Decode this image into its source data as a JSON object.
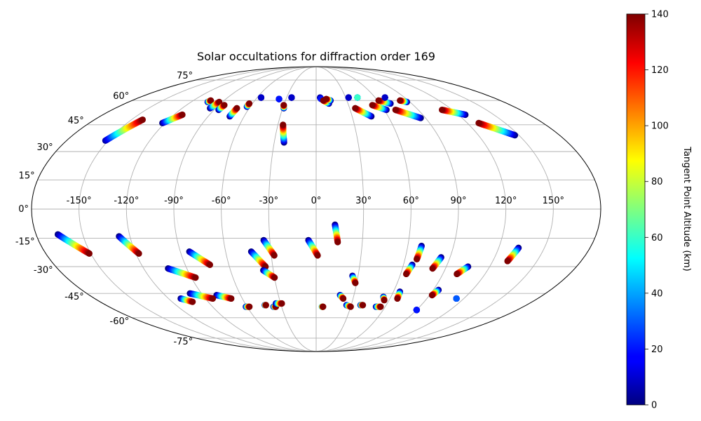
{
  "chart_data": {
    "type": "scatter",
    "projection": "mollweide",
    "title": "Solar occultations for diffraction order 169",
    "grid": true,
    "lon_ticks": [
      "-150°",
      "-120°",
      "-90°",
      "-60°",
      "-30°",
      "0°",
      "30°",
      "60°",
      "90°",
      "120°",
      "150°"
    ],
    "lat_ticks": [
      "75°",
      "60°",
      "45°",
      "30°",
      "15°",
      "0°",
      "-15°",
      "-30°",
      "-45°",
      "-60°",
      "-75°"
    ],
    "colorbar": {
      "label": "Tangent Point Altitude (km)",
      "colormap": "jet",
      "range": [
        0,
        140
      ],
      "ticks": [
        "0",
        "20",
        "40",
        "60",
        "80",
        "100",
        "120",
        "140"
      ]
    },
    "series": [
      {
        "lon_start": -152,
        "lat_start": 36,
        "lon_end": -141,
        "lat_end": 48,
        "alt_start": 5,
        "alt_end": 140
      },
      {
        "lon_start": -122,
        "lat_start": 46,
        "lon_end": -113,
        "lat_end": 51,
        "alt_start": 0,
        "alt_end": 140
      },
      {
        "lon_start": -104,
        "lat_start": 59,
        "lon_end": -103,
        "lat_end": 60,
        "alt_start": 0,
        "alt_end": 140
      },
      {
        "lon_start": -95,
        "lat_start": 55,
        "lon_end": -93,
        "lat_end": 59,
        "alt_start": 0,
        "alt_end": 140
      },
      {
        "lon_start": -86,
        "lat_start": 54,
        "lon_end": -85,
        "lat_end": 57,
        "alt_start": 0,
        "alt_end": 140
      },
      {
        "lon_start": -72,
        "lat_start": 50,
        "lon_end": -71,
        "lat_end": 55,
        "alt_start": 0,
        "alt_end": 140
      },
      {
        "lon_start": -63,
        "lat_start": 56,
        "lon_end": -63,
        "lat_end": 58,
        "alt_start": 0,
        "alt_end": 140
      },
      {
        "lon_start": -56,
        "lat_start": 62,
        "lon_end": -56,
        "lat_end": 62,
        "alt_start": 0,
        "alt_end": 10
      },
      {
        "lon_start": -37,
        "lat_start": 61,
        "lon_end": -37,
        "lat_end": 61,
        "alt_start": 0,
        "alt_end": 20
      },
      {
        "lon_start": -29,
        "lat_start": 55,
        "lon_end": -30,
        "lat_end": 57,
        "alt_start": 0,
        "alt_end": 140
      },
      {
        "lon_start": -25,
        "lat_start": 62,
        "lon_end": -25,
        "lat_end": 62,
        "alt_start": 0,
        "alt_end": 10
      },
      {
        "lon_start": -23,
        "lat_start": 35,
        "lon_end": -26,
        "lat_end": 45,
        "alt_start": 0,
        "alt_end": 140
      },
      {
        "lon_start": 4,
        "lat_start": 62,
        "lon_end": 5,
        "lat_end": 61,
        "alt_start": 0,
        "alt_end": 20
      },
      {
        "lon_start": 12,
        "lat_start": 58,
        "lon_end": 7,
        "lat_end": 60,
        "alt_start": 0,
        "alt_end": 140
      },
      {
        "lon_start": 14,
        "lat_start": 60,
        "lon_end": 10,
        "lat_end": 61,
        "alt_start": 0,
        "alt_end": 140
      },
      {
        "lon_start": 33,
        "lat_start": 62,
        "lon_end": 33,
        "lat_end": 62,
        "alt_start": 0,
        "alt_end": 10
      },
      {
        "lon_start": 42,
        "lat_start": 62,
        "lon_end": 42,
        "lat_end": 62,
        "alt_start": 0,
        "alt_end": 60
      },
      {
        "lon_start": 46,
        "lat_start": 50,
        "lon_end": 35,
        "lat_end": 55,
        "alt_start": 0,
        "alt_end": 140
      },
      {
        "lon_start": 62,
        "lat_start": 54,
        "lon_end": 52,
        "lat_end": 57,
        "alt_start": 0,
        "alt_end": 140
      },
      {
        "lon_start": 70,
        "lat_start": 58,
        "lon_end": 61,
        "lat_end": 60,
        "alt_start": 0,
        "alt_end": 140
      },
      {
        "lon_start": 70,
        "lat_start": 62,
        "lon_end": 70,
        "lat_end": 62,
        "alt_start": 0,
        "alt_end": 10
      },
      {
        "lon_start": 86,
        "lat_start": 49,
        "lon_end": 70,
        "lat_end": 54,
        "alt_start": 0,
        "alt_end": 140
      },
      {
        "lon_start": 87,
        "lat_start": 59,
        "lon_end": 82,
        "lat_end": 60,
        "alt_start": 0,
        "alt_end": 140
      },
      {
        "lon_start": 126,
        "lat_start": 51,
        "lon_end": 111,
        "lat_end": 54,
        "alt_start": 0,
        "alt_end": 140
      },
      {
        "lon_start": 147,
        "lat_start": 39,
        "lon_end": 129,
        "lat_end": 46,
        "alt_start": 0,
        "alt_end": 140
      },
      {
        "lon_start": 12,
        "lat_start": -8,
        "lon_end": 14,
        "lat_end": -17,
        "alt_start": 0,
        "alt_end": 140
      },
      {
        "lon_start": -5,
        "lat_start": -16,
        "lon_end": 1,
        "lat_end": -24,
        "alt_start": 0,
        "alt_end": 140
      },
      {
        "lon_start": -34,
        "lat_start": -16,
        "lon_end": -28,
        "lat_end": -24,
        "alt_start": 0,
        "alt_end": 140
      },
      {
        "lon_start": -43,
        "lat_start": -22,
        "lon_end": -35,
        "lat_end": -30,
        "alt_start": 0,
        "alt_end": 140
      },
      {
        "lon_start": -37,
        "lat_start": -32,
        "lon_end": -30,
        "lat_end": -36,
        "alt_start": 0,
        "alt_end": 140
      },
      {
        "lon_start": -84,
        "lat_start": -22,
        "lon_end": -73,
        "lat_end": -29,
        "alt_start": 0,
        "alt_end": 140
      },
      {
        "lon_start": -103,
        "lat_start": -31,
        "lon_end": -87,
        "lat_end": -36,
        "alt_start": 0,
        "alt_end": 140
      },
      {
        "lon_start": -127,
        "lat_start": -14,
        "lon_end": -118,
        "lat_end": -23,
        "alt_start": 0,
        "alt_end": 140
      },
      {
        "lon_start": -166,
        "lat_start": -13,
        "lon_end": -151,
        "lat_end": -23,
        "alt_start": 0,
        "alt_end": 140
      },
      {
        "lon_start": 133,
        "lat_start": -20,
        "lon_end": 130,
        "lat_end": -27,
        "alt_start": 0,
        "alt_end": 140
      },
      {
        "lon_start": 105,
        "lat_start": -30,
        "lon_end": 100,
        "lat_end": -34,
        "alt_start": 0,
        "alt_end": 140
      },
      {
        "lon_start": 84,
        "lat_start": -25,
        "lon_end": 81,
        "lat_end": -31,
        "alt_start": 0,
        "alt_end": 140
      },
      {
        "lon_start": 69,
        "lat_start": -19,
        "lon_end": 68,
        "lat_end": -26,
        "alt_start": 0,
        "alt_end": 140
      },
      {
        "lon_start": 66,
        "lat_start": -29,
        "lon_end": 64,
        "lat_end": -34,
        "alt_start": 0,
        "alt_end": 140
      },
      {
        "lon_start": 26,
        "lat_start": -35,
        "lon_end": 29,
        "lat_end": -39,
        "alt_start": 0,
        "alt_end": 140
      },
      {
        "lon_start": 94,
        "lat_start": -43,
        "lon_end": 92,
        "lat_end": -46,
        "alt_start": 0,
        "alt_end": 140
      },
      {
        "lon_start": 114,
        "lat_start": -48,
        "lon_end": 114,
        "lat_end": -48,
        "alt_start": 0,
        "alt_end": 30
      },
      {
        "lon_start": 90,
        "lat_start": -55,
        "lon_end": 90,
        "lat_end": -55,
        "alt_start": 0,
        "alt_end": 20
      },
      {
        "lon_start": 65,
        "lat_start": -44,
        "lon_end": 66,
        "lat_end": -48,
        "alt_start": 0,
        "alt_end": 140
      },
      {
        "lon_start": 54,
        "lat_start": -47,
        "lon_end": 56,
        "lat_end": -49,
        "alt_start": 0,
        "alt_end": 140
      },
      {
        "lon_start": 19,
        "lat_start": -46,
        "lon_end": 22,
        "lat_end": -48,
        "alt_start": 0,
        "alt_end": 140
      },
      {
        "lon_start": -79,
        "lat_start": -46,
        "lon_end": -69,
        "lat_end": -48,
        "alt_start": 0,
        "alt_end": 140
      },
      {
        "lon_start": -99,
        "lat_start": -45,
        "lon_end": -84,
        "lat_end": -48,
        "alt_start": 0,
        "alt_end": 140
      },
      {
        "lon_start": -110,
        "lat_start": -48,
        "lon_end": -103,
        "lat_end": -50,
        "alt_start": 0,
        "alt_end": 140
      },
      {
        "lon_start": 26,
        "lat_start": -52,
        "lon_end": 30,
        "lat_end": -53,
        "alt_start": 0,
        "alt_end": 140
      },
      {
        "lon_start": 38,
        "lat_start": -52,
        "lon_end": 40,
        "lat_end": -52,
        "alt_start": 0,
        "alt_end": 140
      },
      {
        "lon_start": 52,
        "lat_start": -53,
        "lon_end": 56,
        "lat_end": -53,
        "alt_start": 0,
        "alt_end": 140
      },
      {
        "lon_start": 5,
        "lat_start": -53,
        "lon_end": 6,
        "lat_end": -53,
        "alt_start": 40,
        "alt_end": 140
      },
      {
        "lon_start": -37,
        "lat_start": -53,
        "lon_end": -35,
        "lat_end": -53,
        "alt_start": 0,
        "alt_end": 140
      },
      {
        "lon_start": -44,
        "lat_start": -52,
        "lon_end": -43,
        "lat_end": -52,
        "alt_start": 0,
        "alt_end": 140
      },
      {
        "lon_start": -61,
        "lat_start": -53,
        "lon_end": -58,
        "lat_end": -53,
        "alt_start": 0,
        "alt_end": 140
      },
      {
        "lon_start": -34,
        "lat_start": -51,
        "lon_end": -29,
        "lat_end": -51,
        "alt_start": 0,
        "alt_end": 140
      }
    ]
  }
}
